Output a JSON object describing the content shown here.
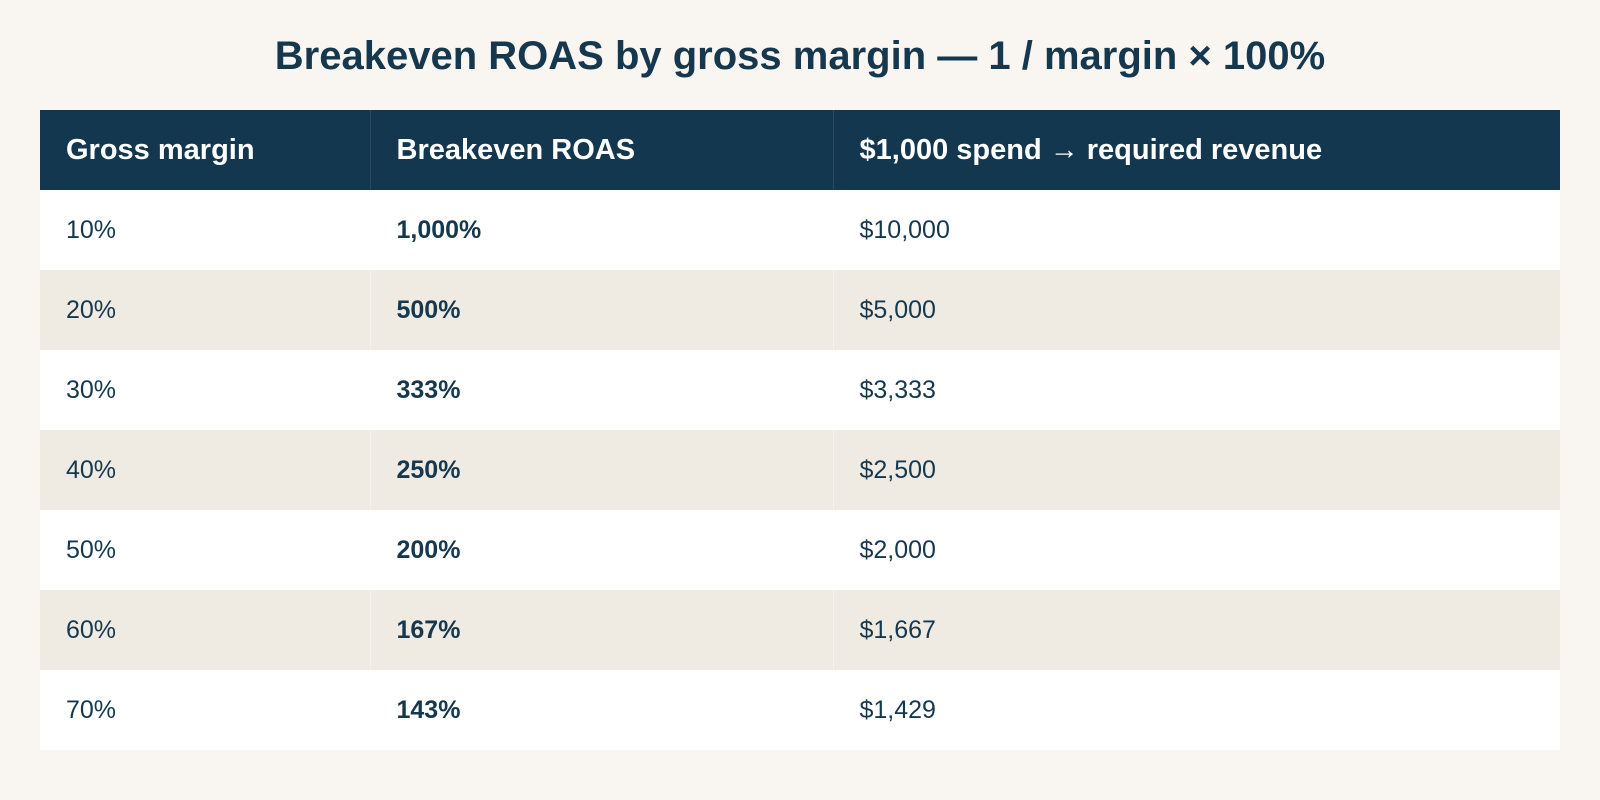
{
  "chart_data": {
    "type": "table",
    "title": "Breakeven ROAS by gross margin — 1 / margin × 100%",
    "columns": [
      "Gross margin",
      "Breakeven ROAS",
      "$1,000 spend → required revenue"
    ],
    "rows": [
      {
        "margin": "10%",
        "roas": "1,000%",
        "revenue": "$10,000"
      },
      {
        "margin": "20%",
        "roas": "500%",
        "revenue": "$5,000"
      },
      {
        "margin": "30%",
        "roas": "333%",
        "revenue": "$3,333"
      },
      {
        "margin": "40%",
        "roas": "250%",
        "revenue": "$2,500"
      },
      {
        "margin": "50%",
        "roas": "200%",
        "revenue": "$2,000"
      },
      {
        "margin": "60%",
        "roas": "167%",
        "revenue": "$1,667"
      },
      {
        "margin": "70%",
        "roas": "143%",
        "revenue": "$1,429"
      }
    ],
    "header_color": "#13374f",
    "stripe_color": "#efebe3"
  }
}
